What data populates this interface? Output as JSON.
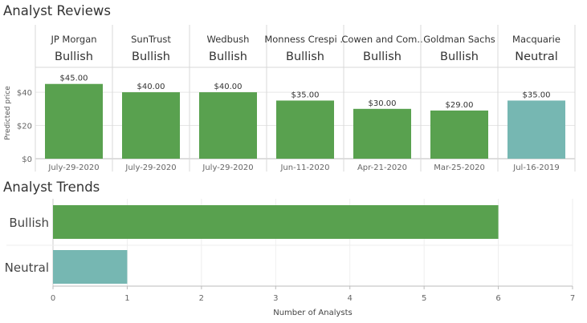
{
  "reviews": {
    "title": "Analyst Reviews",
    "ylabel": "Predicted price",
    "yticks": [
      "$0",
      "$20",
      "$40"
    ]
  },
  "trends": {
    "title": "Analyst Trends",
    "xlabel": "Number of Analysts",
    "xticks": [
      "0",
      "1",
      "2",
      "3",
      "4",
      "5",
      "6",
      "7"
    ]
  },
  "colors": {
    "bullish": "#59a14f",
    "neutral": "#76b7b2",
    "grid": "#e6e6e6",
    "border": "#d9d9d9"
  },
  "chart_data": [
    {
      "type": "bar",
      "title": "Analyst Reviews",
      "ylabel": "Predicted price",
      "ylim": [
        0,
        55
      ],
      "yticks": [
        0,
        20,
        40
      ],
      "series": [
        {
          "firm": "JP Morgan",
          "rating": "Bullish",
          "value": 45,
          "value_label": "$45.00",
          "date": "July-29-2020"
        },
        {
          "firm": "SunTrust",
          "rating": "Bullish",
          "value": 40,
          "value_label": "$40.00",
          "date": "July-29-2020"
        },
        {
          "firm": "Wedbush",
          "rating": "Bullish",
          "value": 40,
          "value_label": "$40.00",
          "date": "July-29-2020"
        },
        {
          "firm": "Monness Crespi ..",
          "rating": "Bullish",
          "value": 35,
          "value_label": "$35.00",
          "date": "Jun-11-2020"
        },
        {
          "firm": "Cowen and Com..",
          "rating": "Bullish",
          "value": 30,
          "value_label": "$30.00",
          "date": "Apr-21-2020"
        },
        {
          "firm": "Goldman Sachs",
          "rating": "Bullish",
          "value": 29,
          "value_label": "$29.00",
          "date": "Mar-25-2020"
        },
        {
          "firm": "Macquarie",
          "rating": "Neutral",
          "value": 35,
          "value_label": "$35.00",
          "date": "Jul-16-2019"
        }
      ],
      "grid": true
    },
    {
      "type": "bar",
      "orientation": "horizontal",
      "title": "Analyst Trends",
      "xlabel": "Number of Analysts",
      "xlim": [
        0,
        7
      ],
      "categories": [
        "Bullish",
        "Neutral"
      ],
      "values": [
        6,
        1
      ],
      "grid": true
    }
  ]
}
